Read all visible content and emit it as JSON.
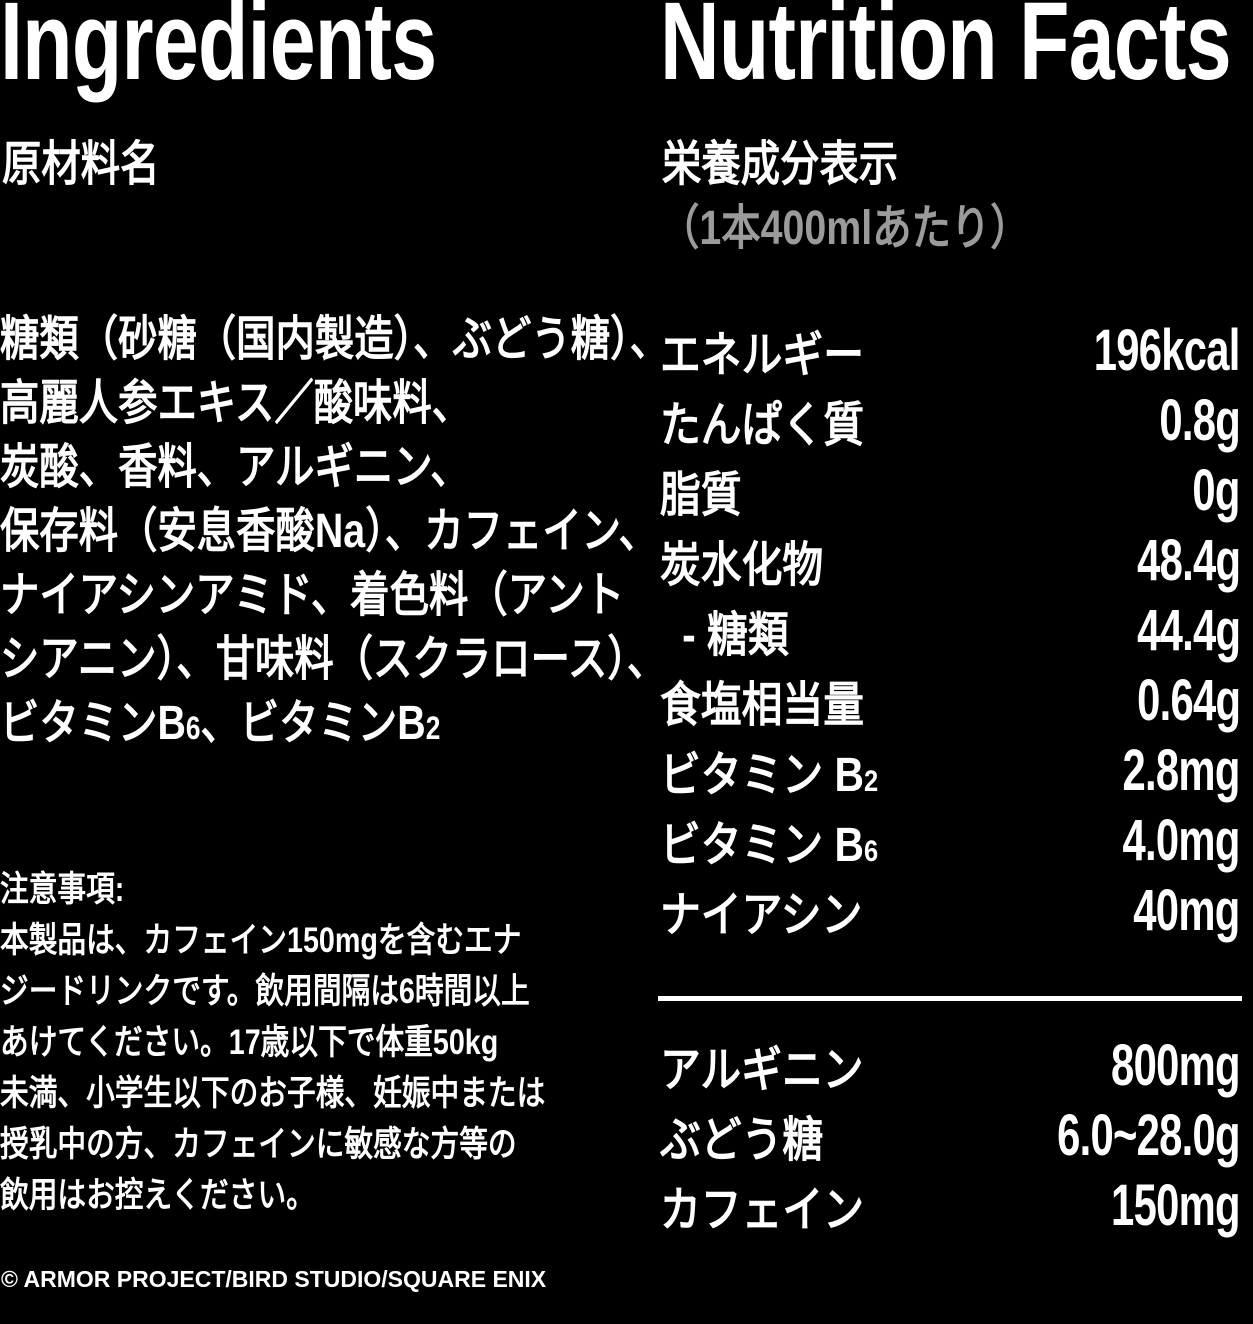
{
  "page": {
    "background_color": "#000000",
    "text_color": "#ffffff",
    "muted_color": "#9b9b9b"
  },
  "ingredients": {
    "title_en": "Ingredients",
    "title_ja": "原材料名",
    "lines": [
      "糖類（砂糖（国内製造）、ぶどう糖）、",
      "高麗人参エキス／酸味料、",
      "炭酸、香料、アルギニン、",
      "保存料（安息香酸Na）、カフェイン、",
      "ナイアシンアミド、着色料（アント",
      "シアニン）、甘味料（スクラロース）、"
    ],
    "line7": {
      "a": "ビタミンB",
      "a_sub": "6",
      "b": "、ビタミンB",
      "b_sub": "2"
    },
    "notes": {
      "heading": "注意事項:",
      "lines": [
        "本製品は、カフェイン150mgを含むエナ",
        "ジードリンクです。飲用間隔は6時間以上",
        "あけてください。17歳以下で体重50kg",
        "未満、小学生以下のお子様、妊娠中または",
        "授乳中の方、カフェインに敏感な方等の",
        "飲用はお控えください。"
      ]
    },
    "copyright": "© ARMOR PROJECT/BIRD STUDIO/SQUARE ENIX"
  },
  "nutrition": {
    "title_en": "Nutrition Facts",
    "title_ja": "栄養成分表示",
    "serving": "（1本400mlあたり）",
    "rows": [
      {
        "label": "エネルギー",
        "value": "196kcal"
      },
      {
        "label": "たんぱく質",
        "value": "0.8g"
      },
      {
        "label": "脂質",
        "value": "0g"
      },
      {
        "label": "炭水化物",
        "value": "48.4g"
      },
      {
        "label": "- 糖類",
        "value": "44.4g"
      },
      {
        "label": "食塩相当量",
        "value": "0.64g"
      },
      {
        "label": "ビタミン B",
        "label_sub": "2",
        "value": "2.8mg"
      },
      {
        "label": "ビタミン B",
        "label_sub": "6",
        "value": "4.0mg"
      },
      {
        "label": "ナイアシン",
        "value": "40mg"
      }
    ],
    "rows_secondary": [
      {
        "label": "アルギニン",
        "value": "800mg"
      },
      {
        "label": "ぶどう糖",
        "value": "6.0~28.0g"
      },
      {
        "label": "カフェイン",
        "value": "150mg"
      }
    ]
  }
}
